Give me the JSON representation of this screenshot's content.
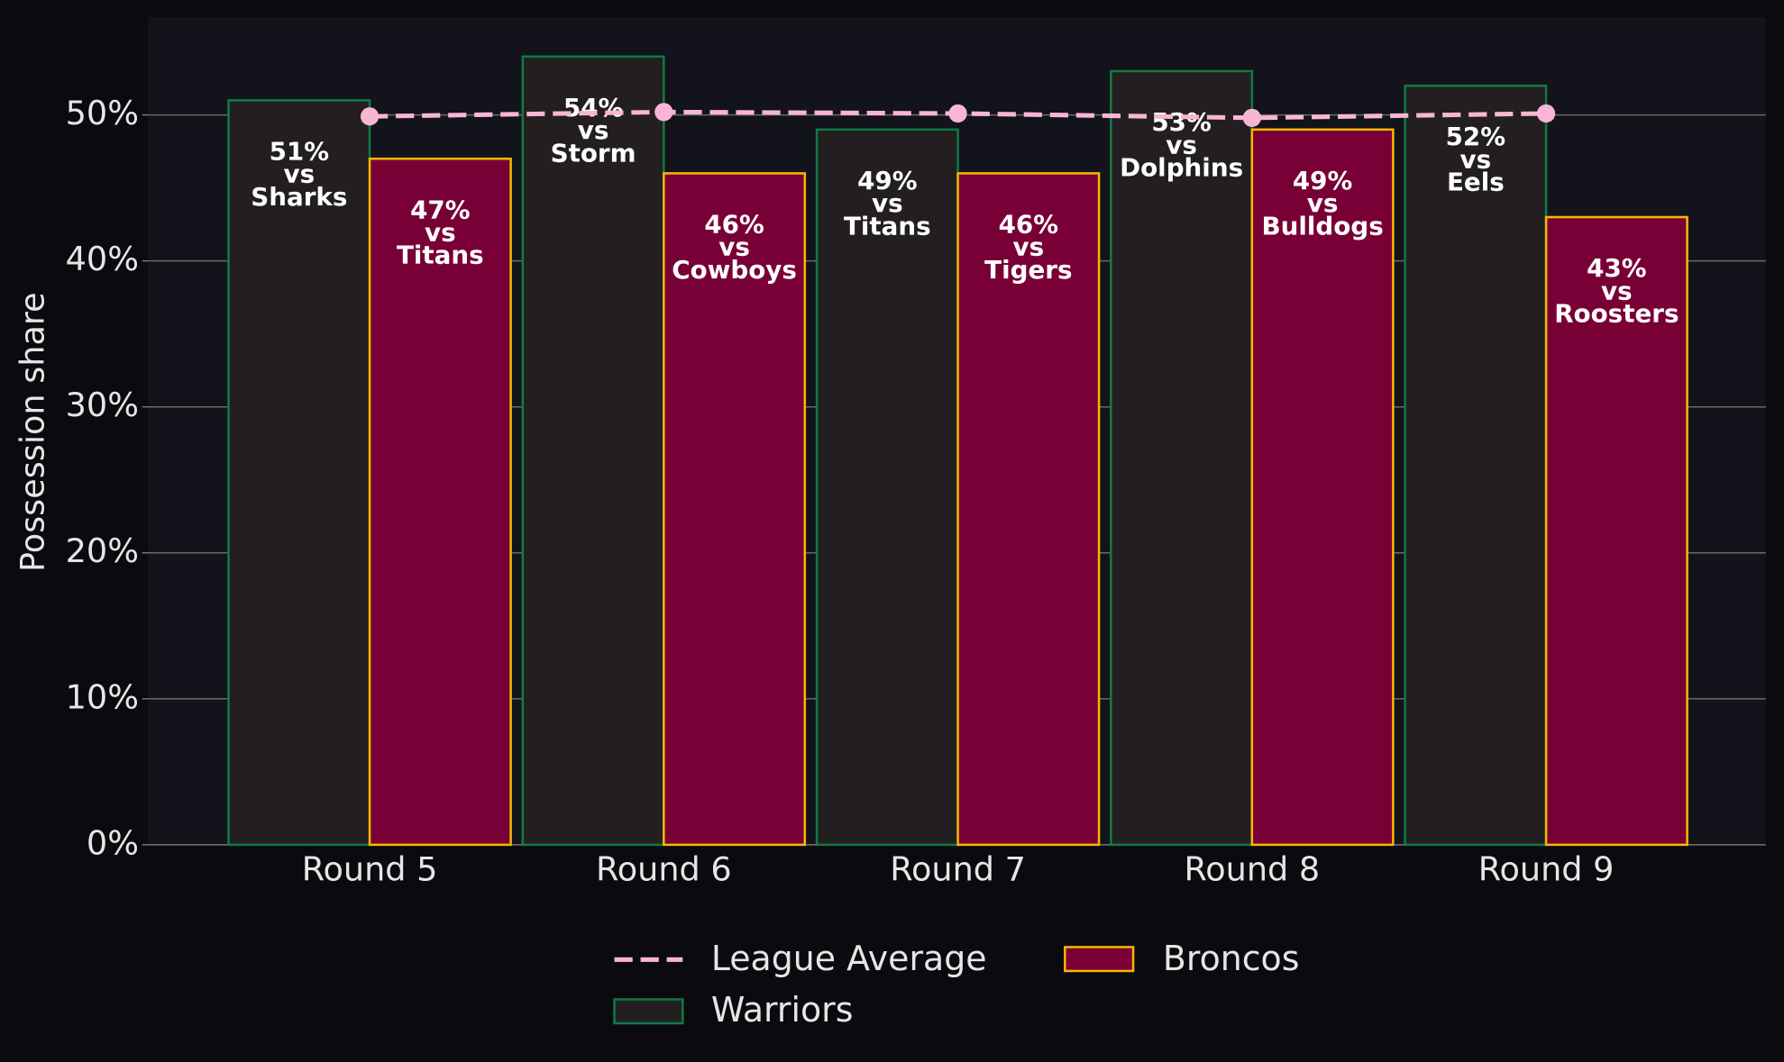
{
  "chart_data": {
    "type": "bar",
    "y_label": "Possession share",
    "categories": [
      "Round 5",
      "Round 6",
      "Round 7",
      "Round 8",
      "Round 9"
    ],
    "opponent_prefix": "vs",
    "series": [
      {
        "name": "Warriors",
        "color": "#231f20",
        "edgecolor": "#0f7a45",
        "values": [
          51,
          54,
          49,
          53,
          52
        ],
        "value_labels": [
          "51%",
          "54%",
          "49%",
          "53%",
          "52%"
        ],
        "opponents": [
          "Sharks",
          "Storm",
          "Titans",
          "Dolphins",
          "Eels"
        ]
      },
      {
        "name": "Broncos",
        "color": "#780036",
        "edgecolor": "#f5b800",
        "values": [
          47,
          46,
          46,
          49,
          43
        ],
        "value_labels": [
          "47%",
          "46%",
          "46%",
          "49%",
          "43%"
        ],
        "opponents": [
          "Titans",
          "Cowboys",
          "Tigers",
          "Bulldogs",
          "Roosters"
        ]
      }
    ],
    "line": {
      "name": "League Average",
      "type": "line",
      "color": "#f9b5d4",
      "values": [
        49.9,
        50.2,
        50.1,
        49.8,
        50.1
      ]
    },
    "ylim": [
      0,
      56.7
    ],
    "yticks": [
      {
        "value": 0,
        "label": "0%"
      },
      {
        "value": 10,
        "label": "10%"
      },
      {
        "value": 20,
        "label": "20%"
      },
      {
        "value": 30,
        "label": "30%"
      },
      {
        "value": 40,
        "label": "40%"
      },
      {
        "value": 50,
        "label": "50%"
      }
    ],
    "grid": true
  }
}
